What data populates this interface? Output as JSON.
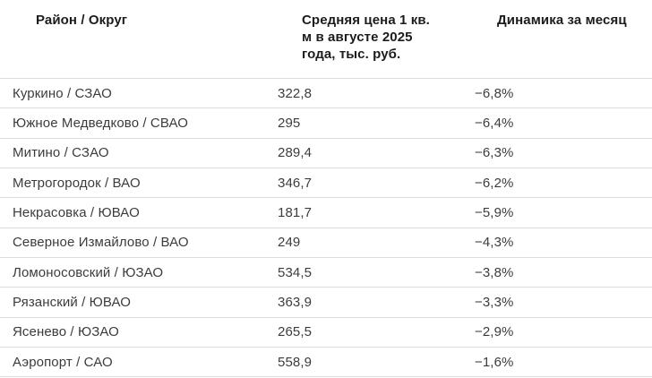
{
  "table": {
    "headers": [
      {
        "label": "Район / Округ"
      },
      {
        "label": "Средняя цена 1 кв.\nм в августе 2025\nгода, тыс. руб."
      },
      {
        "label": "Динамика за месяц"
      }
    ],
    "rows": [
      {
        "district": "Куркино / СЗАО",
        "price": "322,8",
        "change": "−6,8%"
      },
      {
        "district": "Южное Медведково / СВАО",
        "price": "295",
        "change": "−6,4%"
      },
      {
        "district": "Митино / СЗАО",
        "price": "289,4",
        "change": "−6,3%"
      },
      {
        "district": "Метрогородок / ВАО",
        "price": "346,7",
        "change": "−6,2%"
      },
      {
        "district": "Некрасовка / ЮВАО",
        "price": "181,7",
        "change": "−5,9%"
      },
      {
        "district": "Северное Измайлово / ВАО",
        "price": "249",
        "change": "−4,3%"
      },
      {
        "district": "Ломоносовский / ЮЗАО",
        "price": "534,5",
        "change": "−3,8%"
      },
      {
        "district": "Рязанский / ЮВАО",
        "price": "363,9",
        "change": "−3,3%"
      },
      {
        "district": "Ясенево / ЮЗАО",
        "price": "265,5",
        "change": "−2,9%"
      },
      {
        "district": "Аэропорт / САО",
        "price": "558,9",
        "change": "−1,6%"
      }
    ]
  },
  "chart_data": {
    "type": "table",
    "title": "",
    "columns": [
      "Район / Округ",
      "Средняя цена 1 кв. м в августе 2025 года, тыс. руб.",
      "Динамика за месяц"
    ],
    "rows": [
      {
        "district": "Куркино / СЗАО",
        "price_thousand_rub": 322.8,
        "change_month_pct": -6.8
      },
      {
        "district": "Южное Медведково / СВАО",
        "price_thousand_rub": 295,
        "change_month_pct": -6.4
      },
      {
        "district": "Митино / СЗАО",
        "price_thousand_rub": 289.4,
        "change_month_pct": -6.3
      },
      {
        "district": "Метрогородок / ВАО",
        "price_thousand_rub": 346.7,
        "change_month_pct": -6.2
      },
      {
        "district": "Некрасовка / ЮВАО",
        "price_thousand_rub": 181.7,
        "change_month_pct": -5.9
      },
      {
        "district": "Северное Измайлово / ВАО",
        "price_thousand_rub": 249,
        "change_month_pct": -4.3
      },
      {
        "district": "Ломоносовский / ЮЗАО",
        "price_thousand_rub": 534.5,
        "change_month_pct": -3.8
      },
      {
        "district": "Рязанский / ЮВАО",
        "price_thousand_rub": 363.9,
        "change_month_pct": -3.3
      },
      {
        "district": "Ясенево / ЮЗАО",
        "price_thousand_rub": 265.5,
        "change_month_pct": -2.9
      },
      {
        "district": "Аэропорт / САО",
        "price_thousand_rub": 558.9,
        "change_month_pct": -1.6
      }
    ],
    "colors": {
      "header_text": "#1c1c1c",
      "body_text": "#3c3c3c",
      "divider": "#dcdcdc",
      "background": "#ffffff"
    },
    "layout": {
      "grid": "horizontal row dividers only",
      "legend_position": "none"
    }
  }
}
